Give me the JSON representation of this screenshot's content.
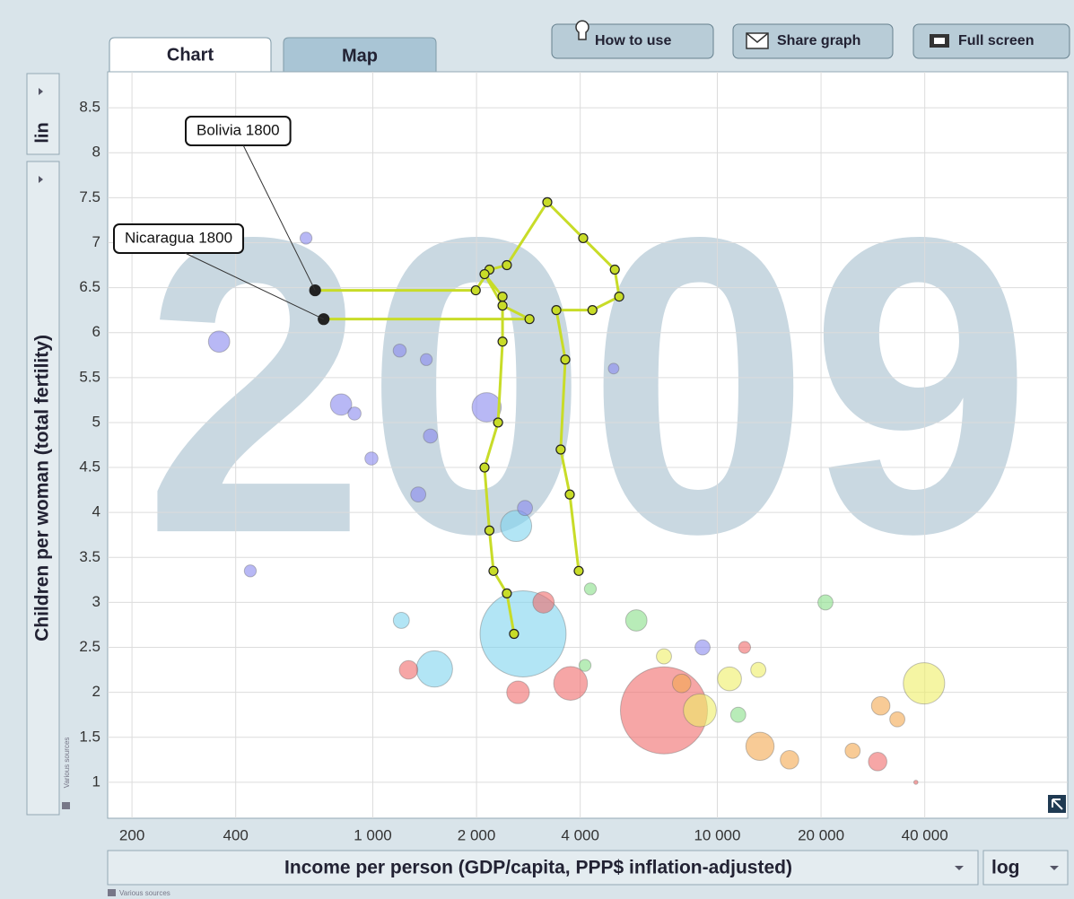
{
  "tabs": [
    "Chart",
    "Map"
  ],
  "buttons": [
    "How to use",
    "Share graph",
    "Full screen"
  ],
  "chart_data": {
    "type": "bubble",
    "watermark": "2009",
    "y_label": "Children per woman (total fertility)",
    "x_label": "Income per person (GDP/capita, PPP$ inflation-adjusted)",
    "y_scale": "lin",
    "x_scale": "log",
    "source_note": "Various sources",
    "xlim": [
      170,
      104000
    ],
    "ylim": [
      0.6,
      8.9
    ],
    "xticks": [
      200,
      400,
      {
        "value": 1000,
        "label": "1 000"
      },
      {
        "value": 2000,
        "label": "2 000"
      },
      {
        "value": 4000,
        "label": "4 000"
      },
      {
        "value": 10000,
        "label": "10 000"
      },
      {
        "value": 20000,
        "label": "20 000"
      },
      {
        "value": 40000,
        "label": "40 000"
      }
    ],
    "yticks": [
      1,
      1.5,
      2,
      2.5,
      3,
      3.5,
      4,
      4.5,
      5,
      5.5,
      6,
      6.5,
      7,
      7.5,
      8,
      8.5
    ],
    "grid": true,
    "series": [
      {
        "color": "#7fd3ee",
        "x": [
          2730,
          2606,
          1510,
          1210
        ],
        "values": [
          2.65,
          3.85,
          2.26,
          2.8
        ],
        "sizes": [
          1300,
          170,
          230,
          45
        ]
      },
      {
        "color": "#8888ee",
        "x": [
          358,
          809,
          2140,
          1355,
          991,
          1197,
          1430,
          1470,
          640,
          441,
          2765,
          5000,
          9060,
          885
        ],
        "values": [
          5.9,
          5.2,
          5.17,
          4.2,
          4.6,
          5.8,
          5.7,
          4.85,
          7.05,
          3.35,
          4.05,
          5.6,
          2.5,
          5.1
        ],
        "sizes": [
          80,
          80,
          150,
          40,
          30,
          30,
          25,
          35,
          25,
          25,
          40,
          20,
          40,
          30
        ]
      },
      {
        "color": "#f06a6a",
        "x": [
          7000,
          3750,
          2640,
          1270,
          3130,
          29200,
          37700,
          12000
        ],
        "values": [
          1.8,
          2.1,
          2.0,
          2.25,
          3.0,
          1.23,
          1.0,
          2.5
        ],
        "sizes": [
          1330,
          200,
          90,
          60,
          80,
          60,
          3,
          25
        ]
      },
      {
        "color": "#eeee66",
        "x": [
          39800,
          10850,
          8900,
          7000,
          13150
        ],
        "values": [
          2.1,
          2.15,
          1.8,
          2.4,
          2.25
        ],
        "sizes": [
          300,
          100,
          190,
          40,
          40
        ]
      },
      {
        "color": "#88e088",
        "x": [
          5820,
          20600,
          11500,
          4280,
          4130
        ],
        "values": [
          2.8,
          3.0,
          1.75,
          3.15,
          2.3
        ],
        "sizes": [
          80,
          40,
          40,
          25,
          25
        ]
      },
      {
        "color": "#f4a850",
        "x": [
          13300,
          29800,
          33300,
          16200,
          24700,
          7880
        ],
        "values": [
          1.4,
          1.85,
          1.7,
          1.25,
          1.35,
          2.1
        ],
        "sizes": [
          140,
          60,
          40,
          60,
          40,
          60
        ]
      }
    ],
    "trails": [
      {
        "label": "Bolivia 1800",
        "color": "#c8dc28",
        "x": [
          680,
          1990,
          2180,
          2450,
          3210,
          4080,
          5040,
          5190,
          4340,
          3410,
          3620,
          3510,
          3730,
          3960
        ],
        "values": [
          6.47,
          6.47,
          6.7,
          6.75,
          7.45,
          7.05,
          6.7,
          6.4,
          6.25,
          6.25,
          5.7,
          4.7,
          4.2,
          3.35
        ]
      },
      {
        "label": "Nicaragua 1800",
        "color": "#c8dc28",
        "x": [
          720,
          2850,
          2380,
          2110,
          2380,
          2380,
          2310,
          2110,
          2180,
          2240,
          2450,
          2570
        ],
        "values": [
          6.15,
          6.15,
          6.3,
          6.65,
          6.4,
          5.9,
          5.0,
          4.5,
          3.8,
          3.35,
          3.1,
          2.65
        ]
      }
    ]
  }
}
